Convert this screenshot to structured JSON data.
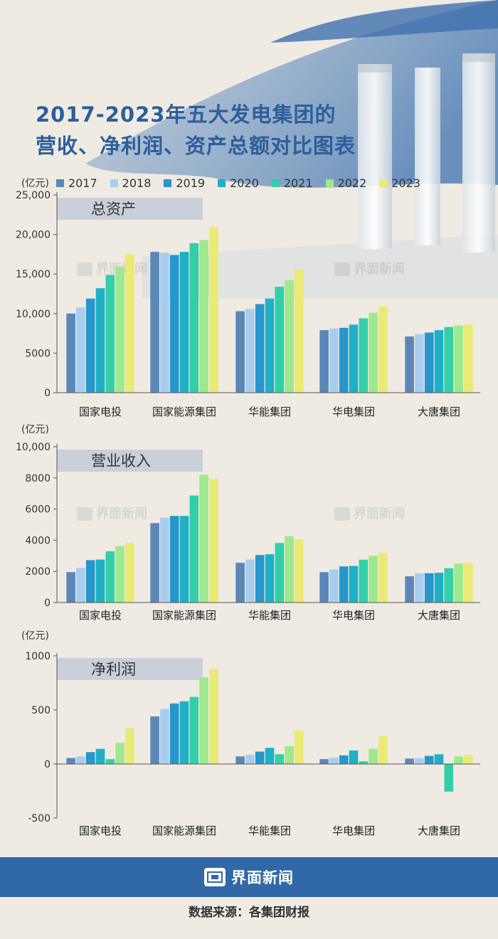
{
  "title": {
    "line1": "2017-2023年五大发电集团的",
    "line2": "营收、净利润、资产总额对比图表"
  },
  "legend": {
    "unit": "(亿元)",
    "items": [
      {
        "label": "2017",
        "color": "#5b87b8"
      },
      {
        "label": "2018",
        "color": "#a9cdee"
      },
      {
        "label": "2019",
        "color": "#2796cb"
      },
      {
        "label": "2020",
        "color": "#1fb0c5"
      },
      {
        "label": "2021",
        "color": "#33cfa8"
      },
      {
        "label": "2022",
        "color": "#9ee88d"
      },
      {
        "label": "2023",
        "color": "#eaea74"
      }
    ]
  },
  "watermark": "界面新闻",
  "footer": {
    "brand": "界面新闻",
    "source": "数据来源：各集团财报"
  },
  "chart_data": [
    {
      "type": "bar",
      "title": "总资产",
      "ylabel": "(亿元)",
      "ylim": [
        0,
        25000
      ],
      "yticks": [
        0,
        5000,
        10000,
        15000,
        20000,
        25000
      ],
      "ytick_labels": [
        "0",
        "5000",
        "10,000",
        "15,000",
        "20,000",
        "25,000"
      ],
      "categories": [
        "国家电投",
        "国家能源集团",
        "华能集团",
        "华电集团",
        "大唐集团"
      ],
      "series": [
        {
          "name": "2017",
          "values": [
            10000,
            17800,
            10300,
            7900,
            7100
          ]
        },
        {
          "name": "2018",
          "values": [
            10800,
            17700,
            10600,
            8100,
            7400
          ]
        },
        {
          "name": "2019",
          "values": [
            11900,
            17400,
            11200,
            8200,
            7600
          ]
        },
        {
          "name": "2020",
          "values": [
            13200,
            17800,
            11900,
            8600,
            7900
          ]
        },
        {
          "name": "2021",
          "values": [
            14900,
            18900,
            13400,
            9400,
            8300
          ]
        },
        {
          "name": "2022",
          "values": [
            15900,
            19300,
            14200,
            10100,
            8500
          ]
        },
        {
          "name": "2023",
          "values": [
            17500,
            20900,
            15600,
            10900,
            8600
          ]
        }
      ]
    },
    {
      "type": "bar",
      "title": "营业收入",
      "ylabel": "(亿元)",
      "ylim": [
        0,
        10000
      ],
      "yticks": [
        0,
        2000,
        4000,
        6000,
        8000,
        10000
      ],
      "ytick_labels": [
        "0",
        "2000",
        "4000",
        "6000",
        "8000",
        "10,000"
      ],
      "categories": [
        "国家电投",
        "国家能源集团",
        "华能集团",
        "华电集团",
        "大唐集团"
      ],
      "series": [
        {
          "name": "2017",
          "values": [
            1950,
            5100,
            2550,
            1950,
            1680
          ]
        },
        {
          "name": "2018",
          "values": [
            2230,
            5450,
            2770,
            2130,
            1880
          ]
        },
        {
          "name": "2019",
          "values": [
            2720,
            5560,
            3050,
            2320,
            1880
          ]
        },
        {
          "name": "2020",
          "values": [
            2760,
            5560,
            3100,
            2350,
            1910
          ]
        },
        {
          "name": "2021",
          "values": [
            3290,
            6870,
            3820,
            2750,
            2200
          ]
        },
        {
          "name": "2022",
          "values": [
            3620,
            8200,
            4250,
            3000,
            2500
          ]
        },
        {
          "name": "2023",
          "values": [
            3820,
            7920,
            4050,
            3200,
            2550
          ]
        }
      ]
    },
    {
      "type": "bar",
      "title": "净利润",
      "ylabel": "(亿元)",
      "ylim": [
        -500,
        1000
      ],
      "yticks": [
        -500,
        0,
        500,
        1000
      ],
      "ytick_labels": [
        "-500",
        "0",
        "500",
        "1000"
      ],
      "categories": [
        "国家电投",
        "国家能源集团",
        "华能集团",
        "华电集团",
        "大唐集团"
      ],
      "series": [
        {
          "name": "2017",
          "values": [
            55,
            440,
            70,
            45,
            50
          ]
        },
        {
          "name": "2018",
          "values": [
            70,
            510,
            85,
            60,
            55
          ]
        },
        {
          "name": "2019",
          "values": [
            110,
            560,
            115,
            80,
            75
          ]
        },
        {
          "name": "2020",
          "values": [
            140,
            580,
            150,
            125,
            90
          ]
        },
        {
          "name": "2021",
          "values": [
            45,
            620,
            90,
            25,
            -255
          ]
        },
        {
          "name": "2022",
          "values": [
            195,
            800,
            165,
            140,
            70
          ]
        },
        {
          "name": "2023",
          "values": [
            330,
            880,
            310,
            260,
            85
          ]
        }
      ]
    }
  ]
}
